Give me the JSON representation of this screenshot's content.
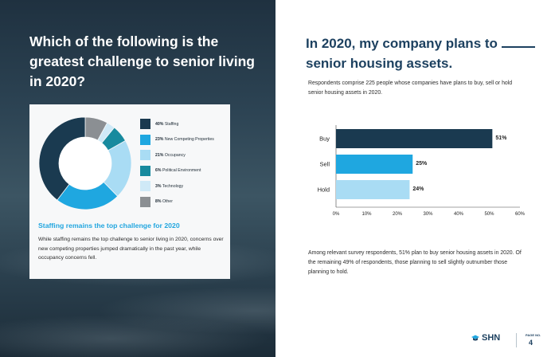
{
  "left": {
    "title": "Which of the following is the greatest challenge to senior living in 2020?",
    "legend": [
      {
        "pct": "40%",
        "label": "Staffing",
        "color": "#1a3a50",
        "value": 40
      },
      {
        "pct": "23%",
        "label": "New Competing Properties",
        "color": "#1fa7e0",
        "value": 23
      },
      {
        "pct": "21%",
        "label": "Occupancy",
        "color": "#a9dcf4",
        "value": 21
      },
      {
        "pct": "6%",
        "label": "Political Environment",
        "color": "#178a9e",
        "value": 6
      },
      {
        "pct": "3%",
        "label": "Technology",
        "color": "#cfe9f7",
        "value": 3
      },
      {
        "pct": "8%",
        "label": "Other",
        "color": "#8b8f93",
        "value": 8
      }
    ],
    "card_heading": "Staffing remains the top challenge for 2020",
    "card_body": "While staffing remains the top challenge to senior living in 2020, concerns over new competing properties jumped dramatically in the past year, while occupancy concerns fell."
  },
  "right": {
    "title_line1": "In 2020, my company plans to",
    "title_line2": "senior housing assets.",
    "subtitle": "Respondents comprise 225 people whose companies have plans to buy, sell or hold senior housing assets in 2020.",
    "summary": "Among relevant survey respondents, 51% plan to buy senior housing assets in 2020. Of the remaining 49% of respondents, those planning to sell slightly outnumber those planning to hold."
  },
  "chart_data": {
    "type": "bar",
    "orientation": "horizontal",
    "categories": [
      "Buy",
      "Sell",
      "Hold"
    ],
    "values": [
      51,
      25,
      24
    ],
    "value_labels": [
      "51%",
      "25%",
      "24%"
    ],
    "colors": [
      "#1a3a50",
      "#1fa7e0",
      "#a9dcf4"
    ],
    "xlim": [
      0,
      60
    ],
    "xticks": [
      "0%",
      "10%",
      "20%",
      "30%",
      "40%",
      "50%",
      "60%"
    ],
    "title": "",
    "xlabel": "",
    "ylabel": ""
  },
  "footer": {
    "logo_text": "SHN",
    "page_label": "PAGE NO.",
    "page_number": "4"
  }
}
